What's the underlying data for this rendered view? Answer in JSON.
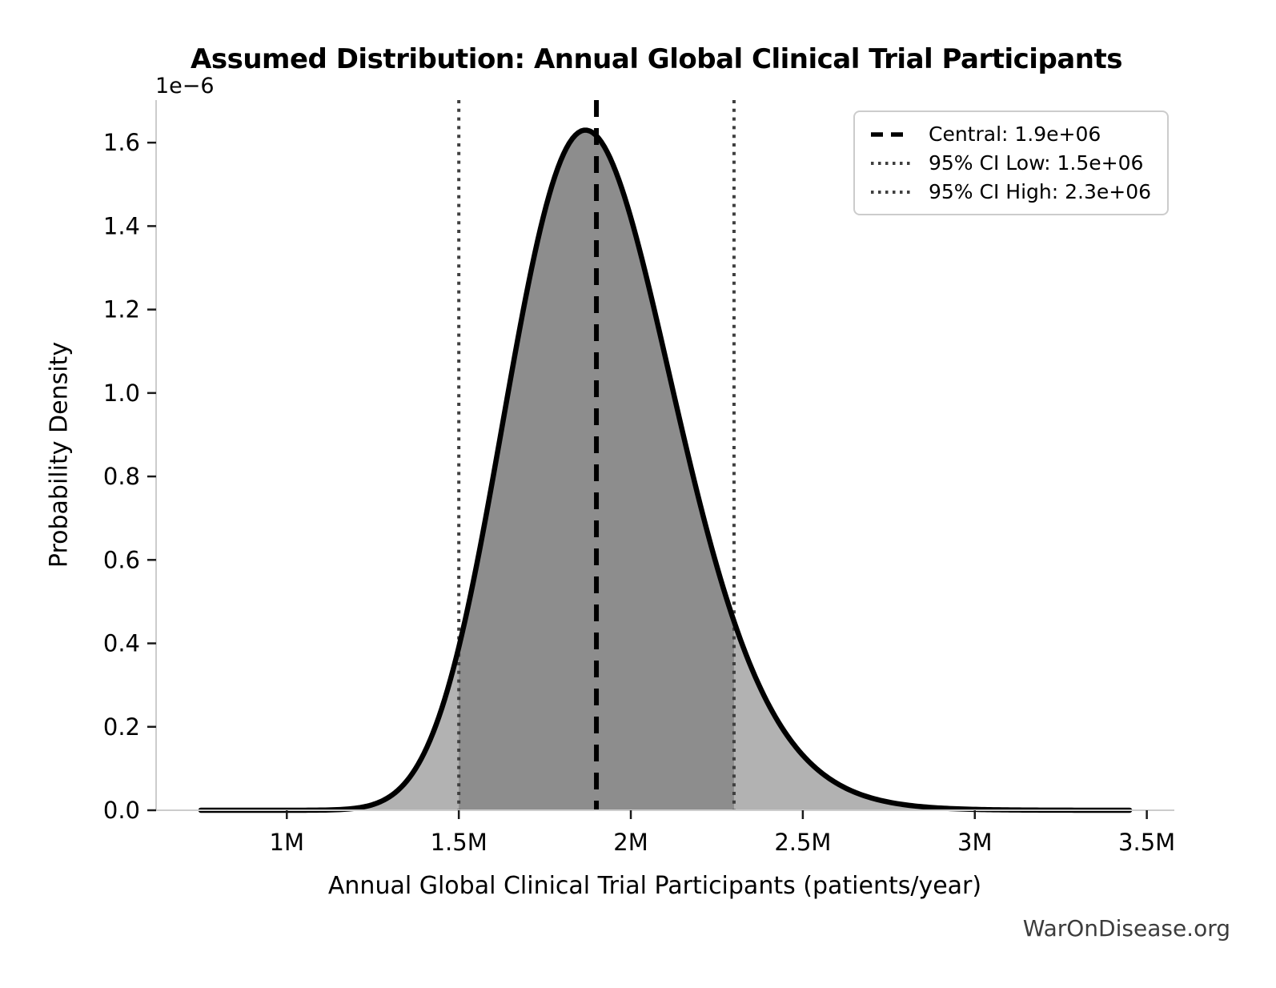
{
  "chart_data": {
    "type": "area",
    "title": "Assumed Distribution: Annual Global Clinical Trial Participants",
    "xlabel": "Annual Global Clinical Trial Participants (patients/year)",
    "ylabel": "Probability Density",
    "y_scale_offset_label": "1e−6",
    "distribution": {
      "kind": "lognormal",
      "median": 1900000,
      "sigma_log": 0.1299,
      "curve_x_min": 750000,
      "curve_x_max": 3450000,
      "peak_density": 1.63e-06
    },
    "markers": {
      "central": {
        "value": 1900000,
        "label": "Central: 1.9e+06"
      },
      "ci_low": {
        "value": 1500000,
        "label": "95% CI Low: 1.5e+06"
      },
      "ci_high": {
        "value": 2300000,
        "label": "95% CI High: 2.3e+06"
      }
    },
    "xlim": [
      620000,
      3580000
    ],
    "ylim": [
      0,
      1.702e-06
    ],
    "x_ticks": [
      {
        "value": 1000000,
        "label": "1M"
      },
      {
        "value": 1500000,
        "label": "1.5M"
      },
      {
        "value": 2000000,
        "label": "2M"
      },
      {
        "value": 2500000,
        "label": "2.5M"
      },
      {
        "value": 3000000,
        "label": "3M"
      },
      {
        "value": 3500000,
        "label": "3.5M"
      }
    ],
    "y_ticks": [
      {
        "value": 0,
        "label": "0.0"
      },
      {
        "value": 2e-07,
        "label": "0.2"
      },
      {
        "value": 4e-07,
        "label": "0.4"
      },
      {
        "value": 6e-07,
        "label": "0.6"
      },
      {
        "value": 8e-07,
        "label": "0.8"
      },
      {
        "value": 1e-06,
        "label": "1.0"
      },
      {
        "value": 1.2e-06,
        "label": "1.2"
      },
      {
        "value": 1.4e-06,
        "label": "1.4"
      },
      {
        "value": 1.6e-06,
        "label": "1.6"
      }
    ],
    "legend_position": "upper right",
    "grid": false,
    "legend": [
      {
        "style": "dashed",
        "color": "#000000",
        "label": "Central: 1.9e+06"
      },
      {
        "style": "dotted",
        "color": "#3f3f3f",
        "label": "95% CI Low: 1.5e+06"
      },
      {
        "style": "dotted",
        "color": "#3f3f3f",
        "label": "95% CI High: 2.3e+06"
      }
    ],
    "colors": {
      "curve": "#000000",
      "fill_outer": "#b2b2b2",
      "fill_inner": "#8d8d8d",
      "central_line": "#000000",
      "ci_line": "#3f3f3f",
      "spine": "#cccccc",
      "tick": "#1a1a1a",
      "text": "#000000",
      "watermark": "#3c3c3c"
    },
    "watermark": "WarOnDisease.org"
  }
}
